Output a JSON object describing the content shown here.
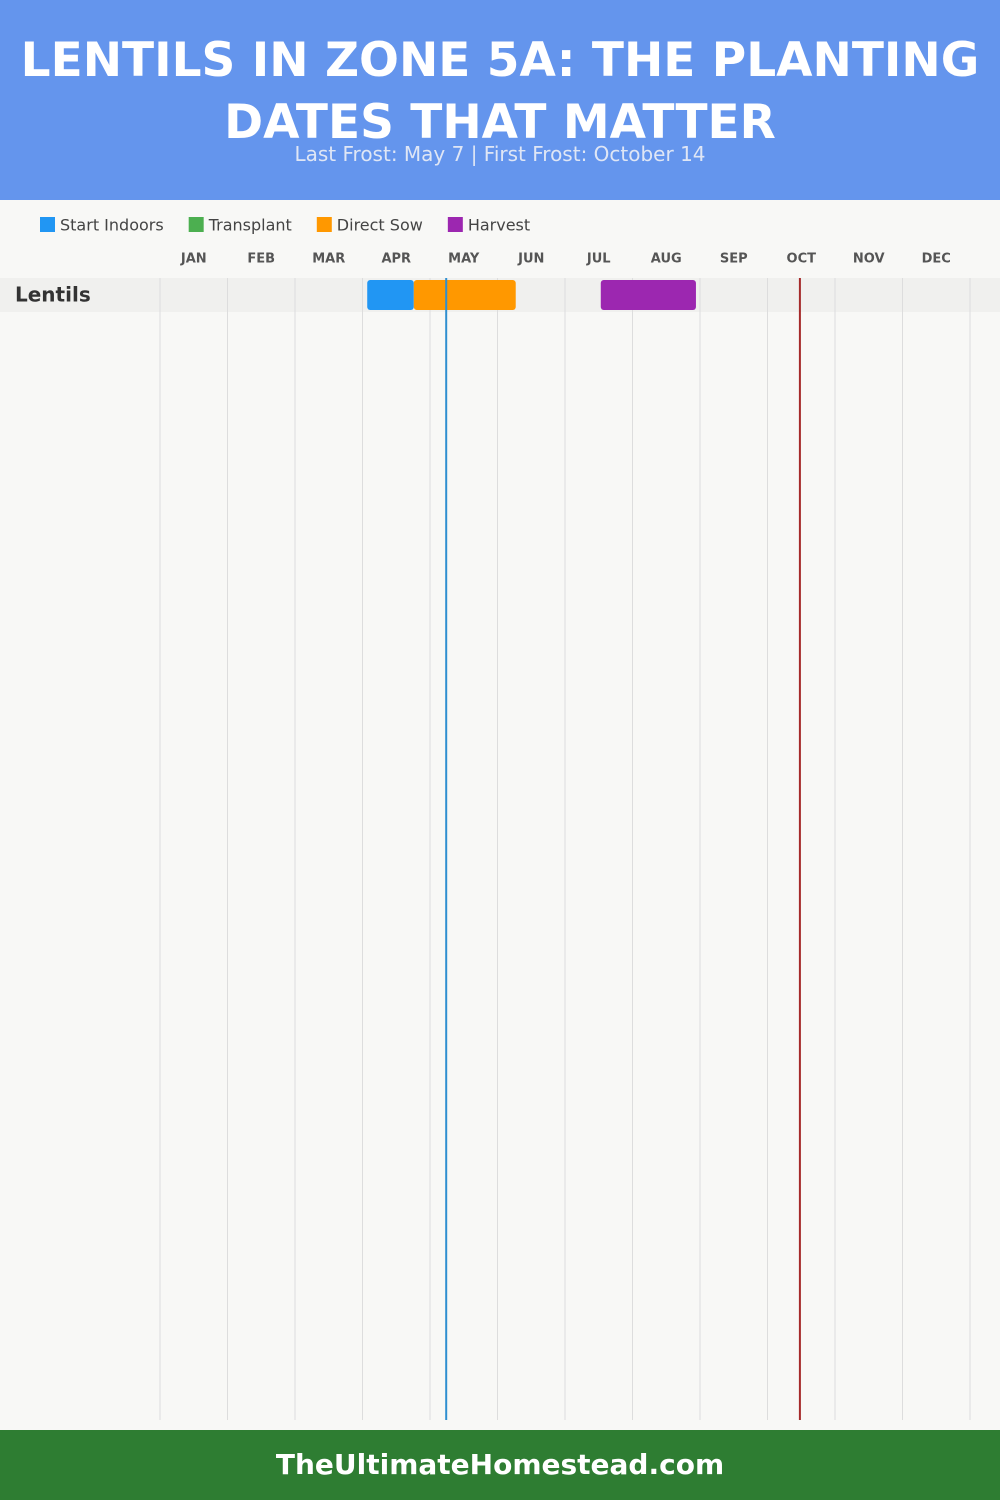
{
  "chart_data": {
    "type": "gantt",
    "title": "LENTILS IN ZONE 5A: THE PLANTING DATES THAT MATTER",
    "subtitle": "Last Frost: May 7 | First Frost: October 14",
    "footer": "TheUltimateHomestead.com",
    "rows": [
      "Lentils"
    ],
    "xlim": [
      0,
      12
    ],
    "xticks": [
      {
        "value": 0.5,
        "label": "JAN"
      },
      {
        "value": 1.5,
        "label": "FEB"
      },
      {
        "value": 2.5,
        "label": "MAR"
      },
      {
        "value": 3.5,
        "label": "APR"
      },
      {
        "value": 4.5,
        "label": "MAY"
      },
      {
        "value": 5.5,
        "label": "JUN"
      },
      {
        "value": 6.5,
        "label": "JUL"
      },
      {
        "value": 7.5,
        "label": "AUG"
      },
      {
        "value": 8.5,
        "label": "SEP"
      },
      {
        "value": 9.5,
        "label": "OCT"
      },
      {
        "value": 10.5,
        "label": "NOV"
      },
      {
        "value": 11.5,
        "label": "DEC"
      }
    ],
    "grid": true,
    "series": [
      {
        "name": "Start Indoors",
        "color": "#2196f3",
        "values": [
          [
            3.07,
            3.76
          ]
        ]
      },
      {
        "name": "Transplant",
        "color": "#4caf50",
        "values": [
          null
        ]
      },
      {
        "name": "Direct Sow",
        "color": "#ff9800",
        "values": [
          [
            3.76,
            5.27
          ]
        ]
      },
      {
        "name": "Harvest",
        "color": "#9c27b0",
        "values": [
          [
            6.53,
            7.94
          ]
        ]
      }
    ],
    "markers": [
      {
        "value": 4.24,
        "color": "#2f8fd0"
      },
      {
        "value": 9.48,
        "color": "#a52a2a"
      }
    ]
  }
}
